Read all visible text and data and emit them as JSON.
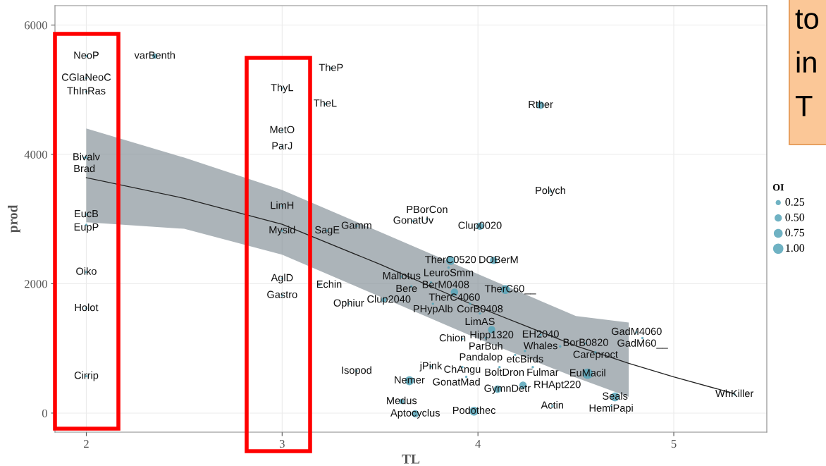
{
  "chart_data": {
    "type": "bubble",
    "xlabel": "TL",
    "ylabel": "prod",
    "legend_title": "OI",
    "grid": true,
    "xlim": [
      1.84,
      5.475
    ],
    "ylim": [
      -295,
      6300
    ],
    "xticks": [
      2,
      3,
      4,
      5
    ],
    "yticks": [
      0,
      2000,
      4000,
      6000
    ],
    "size_legend": [
      0.25,
      {
        "value": 0.5,
        "label": "0.50"
      },
      0.75,
      {
        "value": 1.0,
        "label": "1.00"
      }
    ],
    "series": [
      {
        "color": "#56a5b8",
        "value_labels": [
          "NeoP",
          "varBenth",
          "CGlaNeoC",
          "ThInRas",
          "Bivalv",
          "Brad",
          "EucB",
          "EupP",
          "Oiko",
          "Holot",
          "Cirrip",
          "TheP",
          "ThyL",
          "TheL",
          "MetO",
          "ParJ",
          "LimH",
          "Mysid",
          "SagE",
          "Gamm",
          "AglD",
          "Gastro",
          "Echin",
          "Ophiur",
          "Clup2040",
          "GonatUv",
          "PBorCon",
          "Clup0020",
          "Polych",
          "Rther",
          "TherC0520",
          "DOBerM",
          "LeuroSmm",
          "Mallotus",
          "BerM0408",
          "Bere",
          "TherC4060",
          "TherC60__",
          "PHypAlb",
          "CorB0408",
          "LimAS",
          "Hipp1320",
          "Chion",
          "ParBuh",
          "EH2040",
          "GadM4060",
          "GadM60__",
          "BorB0820",
          "Whales",
          "etcBirds",
          "Careproct",
          "Pandalop",
          "jPink",
          "ChAngu",
          "BoltDron",
          "Fulmar",
          "Isopod",
          "Nemer",
          "GonatMad",
          "GymnDetr",
          "RHApt220",
          "EuMacil",
          "Seals",
          "HemiPapi",
          "Actin",
          "WhKiller",
          "Medus",
          "Aptocyclus",
          "Podothec"
        ],
        "x": [
          2.0,
          2.35,
          2.0,
          2.0,
          2.0,
          1.99,
          2.0,
          2.0,
          2.0,
          2.0,
          2.0,
          3.25,
          3.0,
          3.22,
          3.0,
          3.0,
          3.0,
          3.0,
          3.23,
          3.38,
          3.0,
          3.0,
          3.19,
          3.34,
          3.52,
          3.67,
          3.74,
          4.01,
          4.37,
          4.32,
          3.86,
          4.08,
          3.85,
          3.61,
          3.76,
          3.66,
          3.88,
          4.14,
          3.77,
          3.96,
          4.01,
          4.07,
          3.92,
          4.04,
          4.32,
          4.81,
          4.84,
          4.55,
          4.42,
          4.24,
          4.6,
          4.19,
          3.76,
          3.92,
          4.11,
          4.28,
          3.38,
          3.65,
          3.94,
          4.1,
          4.23,
          4.56,
          4.7,
          4.68,
          4.38,
          5.31,
          3.61,
          3.68,
          3.98
        ],
        "values": [
          5520,
          5520,
          5180,
          4970,
          3950,
          3950,
          3070,
          2910,
          2180,
          1620,
          570,
          5330,
          5020,
          4780,
          4370,
          4120,
          3200,
          2820,
          2820,
          2890,
          2080,
          1820,
          1980,
          1690,
          1750,
          2970,
          3000,
          2890,
          3430,
          4760,
          2360,
          2360,
          2250,
          2110,
          2020,
          1960,
          1870,
          1910,
          1690,
          1690,
          1540,
          1290,
          1150,
          1160,
          1210,
          1250,
          1160,
          1080,
          1030,
          960,
          940,
          900,
          720,
          710,
          710,
          710,
          650,
          500,
          560,
          370,
          430,
          610,
          250,
          110,
          110,
          290,
          180,
          -10,
          30
        ],
        "sizes": [
          null,
          0.25,
          null,
          null,
          null,
          null,
          null,
          null,
          null,
          null,
          null,
          null,
          null,
          null,
          null,
          null,
          null,
          null,
          null,
          null,
          null,
          null,
          null,
          null,
          0.25,
          null,
          null,
          0.5,
          null,
          0.5,
          0.75,
          0.5,
          null,
          null,
          null,
          null,
          0.5,
          0.75,
          null,
          null,
          null,
          0.5,
          null,
          null,
          null,
          null,
          null,
          null,
          null,
          null,
          null,
          null,
          null,
          null,
          null,
          null,
          null,
          0.75,
          null,
          0.5,
          0.5,
          1.0,
          0.75,
          null,
          null,
          null,
          0.25,
          0.5,
          0.75
        ]
      },
      {
        "type": "line",
        "color": "#222222",
        "x": [
          2.0,
          2.5,
          3.0,
          3.5,
          4.0,
          4.5,
          4.77,
          5.0,
          5.31
        ],
        "values": [
          3640,
          3320,
          2920,
          2300,
          1640,
          1040,
          770,
          560,
          300
        ],
        "lower": [
          2950,
          2850,
          2450,
          1800,
          1150,
          550,
          250,
          null,
          null
        ],
        "upper": [
          4400,
          3950,
          3450,
          2800,
          2150,
          1500,
          1400,
          null,
          null
        ]
      }
    ],
    "annotations": [
      "to",
      "in",
      "T"
    ]
  }
}
